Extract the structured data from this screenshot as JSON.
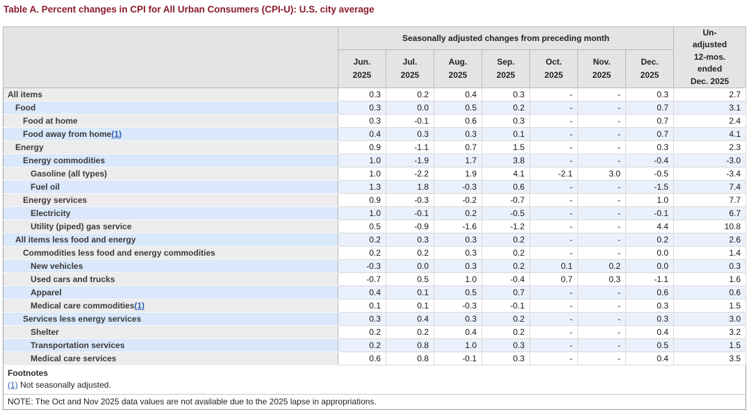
{
  "title": "Table A. Percent changes in CPI for All Urban Consumers (CPI-U): U.S. city average",
  "colors": {
    "title": "#8b1a2b",
    "header_bg": "#e4e4e4",
    "label_row_gray": "#ececec",
    "label_row_blue": "#d9e8fa",
    "data_row_blue": "#eaf1fc",
    "footnote_link": "#2a5db0"
  },
  "table": {
    "group_header": "Seasonally adjusted changes from preceding month",
    "unadjusted_header_lines": [
      "Un-",
      "adjusted",
      "12-mos.",
      "ended",
      "Dec. 2025"
    ],
    "months": [
      {
        "month": "Jun.",
        "year": "2025"
      },
      {
        "month": "Jul.",
        "year": "2025"
      },
      {
        "month": "Aug.",
        "year": "2025"
      },
      {
        "month": "Sep.",
        "year": "2025"
      },
      {
        "month": "Oct.",
        "year": "2025"
      },
      {
        "month": "Nov.",
        "year": "2025"
      },
      {
        "month": "Dec.",
        "year": "2025"
      }
    ],
    "rows": [
      {
        "label": "All items",
        "indent": 0,
        "footnote_marker": "",
        "values": [
          "0.3",
          "0.2",
          "0.4",
          "0.3",
          "-",
          "-",
          "0.3"
        ],
        "yoy": "2.7"
      },
      {
        "label": "Food",
        "indent": 1,
        "footnote_marker": "",
        "values": [
          "0.3",
          "0.0",
          "0.5",
          "0.2",
          "-",
          "-",
          "0.7"
        ],
        "yoy": "3.1"
      },
      {
        "label": "Food at home",
        "indent": 2,
        "footnote_marker": "",
        "values": [
          "0.3",
          "-0.1",
          "0.6",
          "0.3",
          "-",
          "-",
          "0.7"
        ],
        "yoy": "2.4"
      },
      {
        "label": "Food away from home",
        "indent": 2,
        "footnote_marker": "(1)",
        "values": [
          "0.4",
          "0.3",
          "0.3",
          "0.1",
          "-",
          "-",
          "0.7"
        ],
        "yoy": "4.1"
      },
      {
        "label": "Energy",
        "indent": 1,
        "footnote_marker": "",
        "values": [
          "0.9",
          "-1.1",
          "0.7",
          "1.5",
          "-",
          "-",
          "0.3"
        ],
        "yoy": "2.3"
      },
      {
        "label": "Energy commodities",
        "indent": 2,
        "footnote_marker": "",
        "values": [
          "1.0",
          "-1.9",
          "1.7",
          "3.8",
          "-",
          "-",
          "-0.4"
        ],
        "yoy": "-3.0"
      },
      {
        "label": "Gasoline (all types)",
        "indent": 3,
        "footnote_marker": "",
        "values": [
          "1.0",
          "-2.2",
          "1.9",
          "4.1",
          "-2.1",
          "3.0",
          "-0.5"
        ],
        "yoy": "-3.4"
      },
      {
        "label": "Fuel oil",
        "indent": 3,
        "footnote_marker": "",
        "values": [
          "1.3",
          "1.8",
          "-0.3",
          "0.6",
          "-",
          "-",
          "-1.5"
        ],
        "yoy": "7.4"
      },
      {
        "label": "Energy services",
        "indent": 2,
        "footnote_marker": "",
        "values": [
          "0.9",
          "-0.3",
          "-0.2",
          "-0.7",
          "-",
          "-",
          "1.0"
        ],
        "yoy": "7.7"
      },
      {
        "label": "Electricity",
        "indent": 3,
        "footnote_marker": "",
        "values": [
          "1.0",
          "-0.1",
          "0.2",
          "-0.5",
          "-",
          "-",
          "-0.1"
        ],
        "yoy": "6.7"
      },
      {
        "label": "Utility (piped) gas service",
        "indent": 3,
        "footnote_marker": "",
        "values": [
          "0.5",
          "-0.9",
          "-1.6",
          "-1.2",
          "-",
          "-",
          "4.4"
        ],
        "yoy": "10.8"
      },
      {
        "label": "All items less food and energy",
        "indent": 1,
        "footnote_marker": "",
        "values": [
          "0.2",
          "0.3",
          "0.3",
          "0.2",
          "-",
          "-",
          "0.2"
        ],
        "yoy": "2.6"
      },
      {
        "label": "Commodities less food and energy commodities",
        "indent": 2,
        "footnote_marker": "",
        "values": [
          "0.2",
          "0.2",
          "0.3",
          "0.2",
          "-",
          "-",
          "0.0"
        ],
        "yoy": "1.4"
      },
      {
        "label": "New vehicles",
        "indent": 3,
        "footnote_marker": "",
        "values": [
          "-0.3",
          "0.0",
          "0.3",
          "0.2",
          "0.1",
          "0.2",
          "0.0"
        ],
        "yoy": "0.3"
      },
      {
        "label": "Used cars and trucks",
        "indent": 3,
        "footnote_marker": "",
        "values": [
          "-0.7",
          "0.5",
          "1.0",
          "-0.4",
          "0.7",
          "0.3",
          "-1.1"
        ],
        "yoy": "1.6"
      },
      {
        "label": "Apparel",
        "indent": 3,
        "footnote_marker": "",
        "values": [
          "0.4",
          "0.1",
          "0.5",
          "0.7",
          "-",
          "-",
          "0.6"
        ],
        "yoy": "0.6"
      },
      {
        "label": "Medical care commodities",
        "indent": 3,
        "footnote_marker": "(1)",
        "values": [
          "0.1",
          "0.1",
          "-0.3",
          "-0.1",
          "-",
          "-",
          "0.3"
        ],
        "yoy": "1.5"
      },
      {
        "label": "Services less energy services",
        "indent": 2,
        "footnote_marker": "",
        "values": [
          "0.3",
          "0.4",
          "0.3",
          "0.2",
          "-",
          "-",
          "0.3"
        ],
        "yoy": "3.0"
      },
      {
        "label": "Shelter",
        "indent": 3,
        "footnote_marker": "",
        "values": [
          "0.2",
          "0.2",
          "0.4",
          "0.2",
          "-",
          "-",
          "0.4"
        ],
        "yoy": "3.2"
      },
      {
        "label": "Transportation services",
        "indent": 3,
        "footnote_marker": "",
        "values": [
          "0.2",
          "0.8",
          "1.0",
          "0.3",
          "-",
          "-",
          "0.5"
        ],
        "yoy": "1.5"
      },
      {
        "label": "Medical care services",
        "indent": 3,
        "footnote_marker": "",
        "values": [
          "0.6",
          "0.8",
          "-0.1",
          "0.3",
          "-",
          "-",
          "0.4"
        ],
        "yoy": "3.5"
      }
    ]
  },
  "footnotes": {
    "heading": "Footnotes",
    "items": [
      {
        "marker": "(1)",
        "text": "Not seasonally adjusted."
      }
    ],
    "note": "NOTE: The Oct and Nov 2025 data values are not available due to the 2025 lapse in appropriations."
  }
}
